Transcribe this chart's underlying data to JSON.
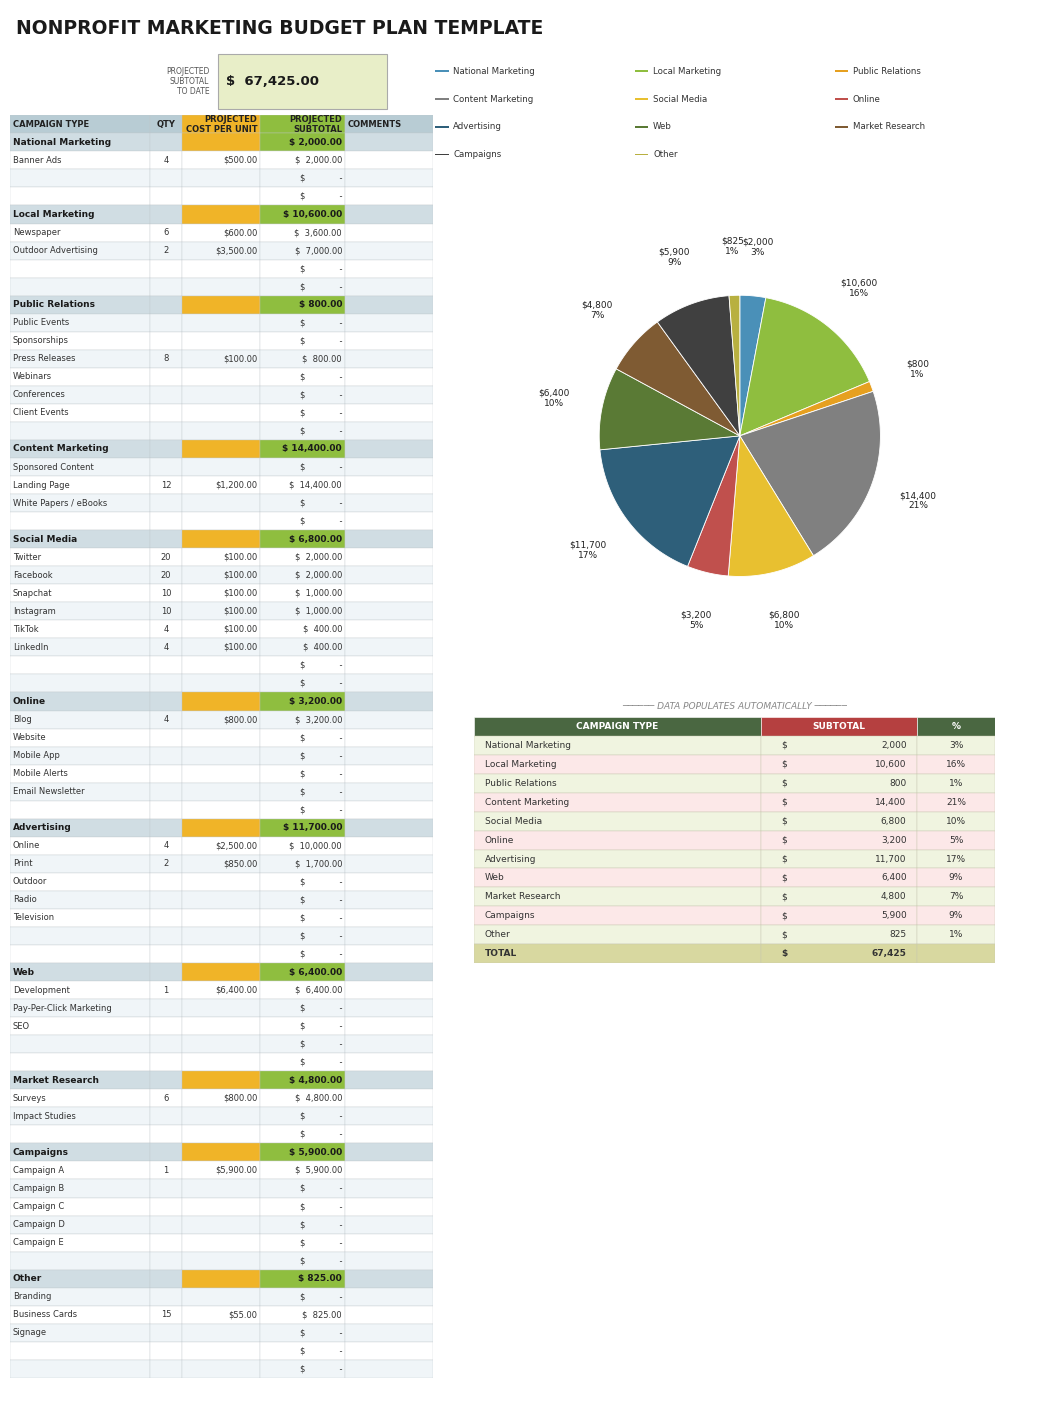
{
  "title": "NONPROFIT MARKETING BUDGET PLAN TEMPLATE",
  "projected_subtotal_label": "PROJECTED\nSUBTOTAL\nTO DATE",
  "projected_subtotal_value": "$  67,425.00",
  "pie_values": [
    2000,
    10600,
    800,
    14400,
    6800,
    3200,
    11700,
    6400,
    4800,
    5900,
    825
  ],
  "pie_label_text": [
    "$2,000\n3%",
    "$10,600\n16%",
    "$800\n1%",
    "$14,400\n21%",
    "$6,800\n10%",
    "$3,200\n5%",
    "$11,700\n17%",
    "$6,400\n10%",
    "$4,800\n7%",
    "$5,900\n9%",
    "$825\n1%"
  ],
  "pie_label_short": [
    "$2,000",
    "$10,600",
    "$800",
    "$14,400",
    "$6,800",
    "$3,200",
    "$11,700",
    "$6,400",
    "$4,800",
    "$5,900",
    "$825"
  ],
  "pie_pct": [
    "3%",
    "16%",
    "1%",
    "21%",
    "10%",
    "5%",
    "17%",
    "10%",
    "7%",
    "9%",
    "1%"
  ],
  "pie_colors": [
    "#4a90b8",
    "#8fbe3f",
    "#e6a020",
    "#808080",
    "#e8c030",
    "#c0504d",
    "#2e5f7a",
    "#5a7a35",
    "#7f5b33",
    "#404040",
    "#b8b040"
  ],
  "legend_labels": [
    "National Marketing",
    "Local Marketing",
    "Public Relations",
    "Content Marketing",
    "Social Media",
    "Online",
    "Advertising",
    "Web",
    "Market Research",
    "Campaigns",
    "Other"
  ],
  "legend_colors": [
    "#4a90b8",
    "#8fbe3f",
    "#e6a020",
    "#808080",
    "#e8c030",
    "#c0504d",
    "#2e5f7a",
    "#5a7a35",
    "#7f5b33",
    "#404040",
    "#b8b040"
  ],
  "rows": [
    {
      "category": "National Marketing",
      "items": [
        {
          "name": "Banner Ads",
          "qty": "4",
          "cost": "$500.00",
          "subtotal": "2,000.00"
        },
        {
          "name": "",
          "qty": "",
          "cost": "",
          "subtotal": "-"
        },
        {
          "name": "",
          "qty": "",
          "cost": "",
          "subtotal": "-"
        }
      ],
      "subtotal": "2,000.00"
    },
    {
      "category": "Local Marketing",
      "items": [
        {
          "name": "Newspaper",
          "qty": "6",
          "cost": "$600.00",
          "subtotal": "3,600.00"
        },
        {
          "name": "Outdoor Advertising",
          "qty": "2",
          "cost": "$3,500.00",
          "subtotal": "7,000.00"
        },
        {
          "name": "",
          "qty": "",
          "cost": "",
          "subtotal": "-"
        },
        {
          "name": "",
          "qty": "",
          "cost": "",
          "subtotal": "-"
        }
      ],
      "subtotal": "10,600.00"
    },
    {
      "category": "Public Relations",
      "items": [
        {
          "name": "Public Events",
          "qty": "",
          "cost": "",
          "subtotal": "-"
        },
        {
          "name": "Sponsorships",
          "qty": "",
          "cost": "",
          "subtotal": "-"
        },
        {
          "name": "Press Releases",
          "qty": "8",
          "cost": "$100.00",
          "subtotal": "800.00"
        },
        {
          "name": "Webinars",
          "qty": "",
          "cost": "",
          "subtotal": "-"
        },
        {
          "name": "Conferences",
          "qty": "",
          "cost": "",
          "subtotal": "-"
        },
        {
          "name": "Client Events",
          "qty": "",
          "cost": "",
          "subtotal": "-"
        },
        {
          "name": "",
          "qty": "",
          "cost": "",
          "subtotal": "-"
        }
      ],
      "subtotal": "800.00"
    },
    {
      "category": "Content Marketing",
      "items": [
        {
          "name": "Sponsored Content",
          "qty": "",
          "cost": "",
          "subtotal": "-"
        },
        {
          "name": "Landing Page",
          "qty": "12",
          "cost": "$1,200.00",
          "subtotal": "14,400.00"
        },
        {
          "name": "White Papers / eBooks",
          "qty": "",
          "cost": "",
          "subtotal": "-"
        },
        {
          "name": "",
          "qty": "",
          "cost": "",
          "subtotal": "-"
        }
      ],
      "subtotal": "14,400.00"
    },
    {
      "category": "Social Media",
      "items": [
        {
          "name": "Twitter",
          "qty": "20",
          "cost": "$100.00",
          "subtotal": "2,000.00"
        },
        {
          "name": "Facebook",
          "qty": "20",
          "cost": "$100.00",
          "subtotal": "2,000.00"
        },
        {
          "name": "Snapchat",
          "qty": "10",
          "cost": "$100.00",
          "subtotal": "1,000.00"
        },
        {
          "name": "Instagram",
          "qty": "10",
          "cost": "$100.00",
          "subtotal": "1,000.00"
        },
        {
          "name": "TikTok",
          "qty": "4",
          "cost": "$100.00",
          "subtotal": "400.00"
        },
        {
          "name": "LinkedIn",
          "qty": "4",
          "cost": "$100.00",
          "subtotal": "400.00"
        },
        {
          "name": "",
          "qty": "",
          "cost": "",
          "subtotal": "-"
        },
        {
          "name": "",
          "qty": "",
          "cost": "",
          "subtotal": "-"
        }
      ],
      "subtotal": "6,800.00"
    },
    {
      "category": "Online",
      "items": [
        {
          "name": "Blog",
          "qty": "4",
          "cost": "$800.00",
          "subtotal": "3,200.00"
        },
        {
          "name": "Website",
          "qty": "",
          "cost": "",
          "subtotal": "-"
        },
        {
          "name": "Mobile App",
          "qty": "",
          "cost": "",
          "subtotal": "-"
        },
        {
          "name": "Mobile Alerts",
          "qty": "",
          "cost": "",
          "subtotal": "-"
        },
        {
          "name": "Email Newsletter",
          "qty": "",
          "cost": "",
          "subtotal": "-"
        },
        {
          "name": "",
          "qty": "",
          "cost": "",
          "subtotal": "-"
        }
      ],
      "subtotal": "3,200.00"
    },
    {
      "category": "Advertising",
      "items": [
        {
          "name": "Online",
          "qty": "4",
          "cost": "$2,500.00",
          "subtotal": "10,000.00"
        },
        {
          "name": "Print",
          "qty": "2",
          "cost": "$850.00",
          "subtotal": "1,700.00"
        },
        {
          "name": "Outdoor",
          "qty": "",
          "cost": "",
          "subtotal": "-"
        },
        {
          "name": "Radio",
          "qty": "",
          "cost": "",
          "subtotal": "-"
        },
        {
          "name": "Television",
          "qty": "",
          "cost": "",
          "subtotal": "-"
        },
        {
          "name": "",
          "qty": "",
          "cost": "",
          "subtotal": "-"
        },
        {
          "name": "",
          "qty": "",
          "cost": "",
          "subtotal": "-"
        }
      ],
      "subtotal": "11,700.00"
    },
    {
      "category": "Web",
      "items": [
        {
          "name": "Development",
          "qty": "1",
          "cost": "$6,400.00",
          "subtotal": "6,400.00"
        },
        {
          "name": "Pay-Per-Click Marketing",
          "qty": "",
          "cost": "",
          "subtotal": "-"
        },
        {
          "name": "SEO",
          "qty": "",
          "cost": "",
          "subtotal": "-"
        },
        {
          "name": "",
          "qty": "",
          "cost": "",
          "subtotal": "-"
        },
        {
          "name": "",
          "qty": "",
          "cost": "",
          "subtotal": "-"
        }
      ],
      "subtotal": "6,400.00"
    },
    {
      "category": "Market Research",
      "items": [
        {
          "name": "Surveys",
          "qty": "6",
          "cost": "$800.00",
          "subtotal": "4,800.00"
        },
        {
          "name": "Impact Studies",
          "qty": "",
          "cost": "",
          "subtotal": "-"
        },
        {
          "name": "",
          "qty": "",
          "cost": "",
          "subtotal": "-"
        }
      ],
      "subtotal": "4,800.00"
    },
    {
      "category": "Campaigns",
      "items": [
        {
          "name": "Campaign A",
          "qty": "1",
          "cost": "$5,900.00",
          "subtotal": "5,900.00"
        },
        {
          "name": "Campaign B",
          "qty": "",
          "cost": "",
          "subtotal": "-"
        },
        {
          "name": "Campaign C",
          "qty": "",
          "cost": "",
          "subtotal": "-"
        },
        {
          "name": "Campaign D",
          "qty": "",
          "cost": "",
          "subtotal": "-"
        },
        {
          "name": "Campaign E",
          "qty": "",
          "cost": "",
          "subtotal": "-"
        },
        {
          "name": "",
          "qty": "",
          "cost": "",
          "subtotal": "-"
        }
      ],
      "subtotal": "5,900.00"
    },
    {
      "category": "Other",
      "items": [
        {
          "name": "Branding",
          "qty": "",
          "cost": "",
          "subtotal": "-"
        },
        {
          "name": "Business Cards",
          "qty": "15",
          "cost": "$55.00",
          "subtotal": "825.00"
        },
        {
          "name": "Signage",
          "qty": "",
          "cost": "",
          "subtotal": "-"
        },
        {
          "name": "",
          "qty": "",
          "cost": "",
          "subtotal": "-"
        },
        {
          "name": "",
          "qty": "",
          "cost": "",
          "subtotal": "-"
        }
      ],
      "subtotal": "825.00"
    }
  ],
  "summary_rows": [
    [
      "National Marketing",
      "2,000",
      "3%"
    ],
    [
      "Local Marketing",
      "10,600",
      "16%"
    ],
    [
      "Public Relations",
      "800",
      "1%"
    ],
    [
      "Content Marketing",
      "14,400",
      "21%"
    ],
    [
      "Social Media",
      "6,800",
      "10%"
    ],
    [
      "Online",
      "3,200",
      "5%"
    ],
    [
      "Advertising",
      "11,700",
      "17%"
    ],
    [
      "Web",
      "6,400",
      "9%"
    ],
    [
      "Market Research",
      "4,800",
      "7%"
    ],
    [
      "Campaigns",
      "5,900",
      "9%"
    ],
    [
      "Other",
      "825",
      "1%"
    ],
    [
      "TOTAL",
      "67,425",
      ""
    ]
  ],
  "col_header_bg": "#b8ccd4",
  "col_cost_bg": "#f0b428",
  "col_subtotal_bg": "#8fbe3f",
  "cat_row_bg": "#d0dde3",
  "item_row_bg1": "#ffffff",
  "item_row_bg2": "#e8f0f4",
  "summary_hdr_col1": "#4a6741",
  "summary_hdr_col2": "#b54040",
  "summary_hdr_col3": "#4a6741",
  "summary_row_bg1": "#f0f4e0",
  "summary_row_bg2": "#fce8e8",
  "summary_total_bg": "#d8d8a0"
}
